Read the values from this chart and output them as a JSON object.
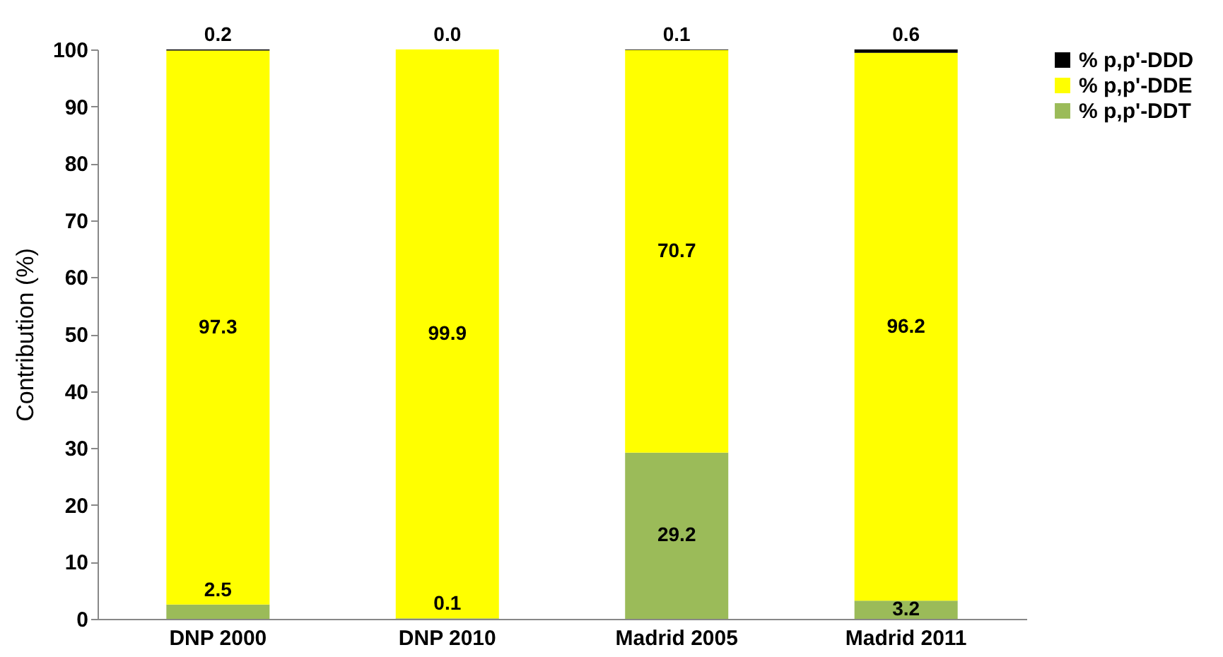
{
  "chart_data": {
    "type": "bar",
    "stacked": true,
    "ylabel": "Contribution (%)",
    "categories": [
      "DNP 2000",
      "DNP 2010",
      "Madrid 2005",
      "Madrid 2011"
    ],
    "series": [
      {
        "name": "% p,p'-DDT",
        "color": "#9bbb59",
        "values": [
          2.5,
          0.1,
          29.2,
          3.2
        ],
        "value_labels": [
          "2.5",
          "0.1",
          "29.2",
          "3.2"
        ]
      },
      {
        "name": "% p,p'-DDE",
        "color": "#ffff00",
        "values": [
          97.3,
          99.9,
          70.7,
          96.2
        ],
        "value_labels": [
          "97.3",
          "99.9",
          "70.7",
          "96.2"
        ]
      },
      {
        "name": "% p,p'-DDD",
        "color": "#000000",
        "values": [
          0.2,
          0.0,
          0.1,
          0.6
        ],
        "value_labels": [
          "0.2",
          "0.0",
          "0.1",
          "0.6"
        ]
      }
    ],
    "ylim": [
      0,
      100
    ],
    "yticks": [
      0,
      10,
      20,
      30,
      40,
      50,
      60,
      70,
      80,
      90,
      100
    ],
    "legend": "right",
    "grid": false
  }
}
